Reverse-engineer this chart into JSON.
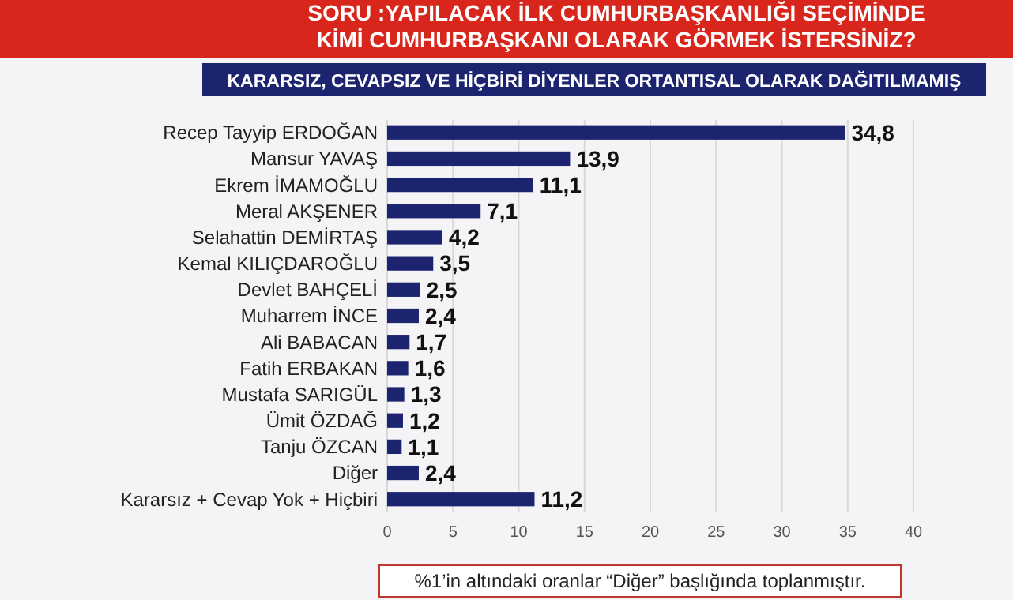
{
  "chart_data": {
    "type": "bar",
    "orientation": "horizontal",
    "title": "SORU :YAPILACAK İLK CUMHURBAŞKANLIĞI SEÇİMİNDE\nKİMİ CUMHURBAŞKANI OLARAK GÖRMEK İSTERSİNİZ?",
    "subtitle": "KARARSIZ, CEVAPSIZ VE HİÇBİRİ DİYENLER ORTANTISAL OLARAK DAĞITILMAMIŞ",
    "categories": [
      "Recep Tayyip ERDOĞAN",
      "Mansur YAVAŞ",
      "Ekrem İMAMOĞLU",
      "Meral AKŞENER",
      "Selahattin DEMİRTAŞ",
      "Kemal KILIÇDAROĞLU",
      "Devlet BAHÇELİ",
      "Muharrem İNCE",
      "Ali BABACAN",
      "Fatih ERBAKAN",
      "Mustafa SARIGÜL",
      "Ümit ÖZDAĞ",
      "Tanju ÖZCAN",
      "Diğer",
      "Kararsız + Cevap Yok + Hiçbiri"
    ],
    "values": [
      34.8,
      13.9,
      11.1,
      7.1,
      4.2,
      3.5,
      2.5,
      2.4,
      1.7,
      1.6,
      1.3,
      1.2,
      1.1,
      2.4,
      11.2
    ],
    "value_labels": [
      "34,8",
      "13,9",
      "11,1",
      "7,1",
      "4,2",
      "3,5",
      "2,5",
      "2,4",
      "1,7",
      "1,6",
      "1,3",
      "1,2",
      "1,1",
      "2,4",
      "11,2"
    ],
    "color": "#1c2470",
    "xlim": [
      0,
      40
    ],
    "xticks": [
      0,
      5,
      10,
      15,
      20,
      25,
      30,
      35,
      40
    ],
    "grid": "x",
    "annotations": [
      "%1’in altındaki oranlar “Diğer” başlığında toplanmıştır."
    ]
  }
}
